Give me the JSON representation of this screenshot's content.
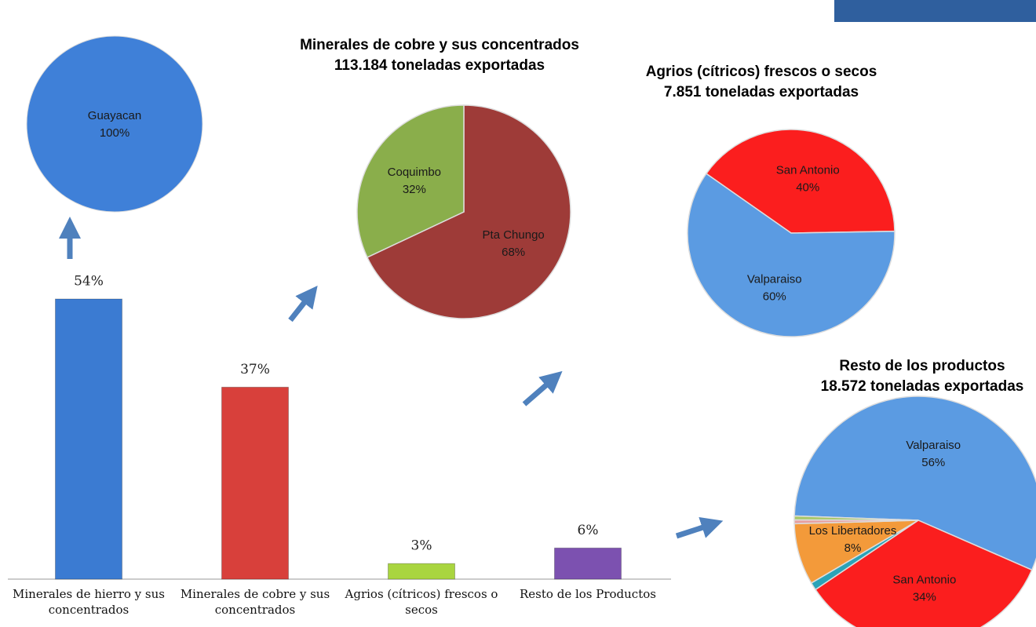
{
  "chart_data": [
    {
      "type": "bar",
      "categories": [
        "Minerales de hierro y sus concentrados",
        "Minerales de cobre y sus concentrados",
        "Agrios (cítricos) frescos o secos",
        "Resto de los Productos"
      ],
      "values": [
        54,
        37,
        3,
        6
      ],
      "value_labels": [
        "54%",
        "37%",
        "3%",
        "6%"
      ],
      "colors": [
        "#3b7bd2",
        "#d8403b",
        "#a9d53f",
        "#7c51b0"
      ]
    },
    {
      "type": "pie",
      "categories": [
        "Guayacan"
      ],
      "values": [
        100
      ],
      "value_labels": [
        "100%"
      ],
      "colors": [
        "#3f80d8"
      ]
    },
    {
      "type": "pie",
      "title": "Minerales de cobre y sus concentrados",
      "subtitle": "113.184 toneladas exportadas",
      "categories": [
        "Pta Chungo",
        "Coquimbo"
      ],
      "values": [
        68,
        32
      ],
      "value_labels": [
        "68%",
        "32%"
      ],
      "colors": [
        "#9e3b38",
        "#8aae4b"
      ]
    },
    {
      "type": "pie",
      "title": "Agrios (cítricos) frescos o secos",
      "subtitle": "7.851 toneladas exportadas",
      "categories": [
        "San Antonio",
        "Valparaiso"
      ],
      "values": [
        40,
        60
      ],
      "value_labels": [
        "40%",
        "60%"
      ],
      "colors": [
        "#fb1e1e",
        "#5b9be2"
      ]
    },
    {
      "type": "pie",
      "title": "Resto de los productos",
      "subtitle": "18.572 toneladas exportadas",
      "categories": [
        "Valparaiso",
        "San Antonio",
        null,
        "Los Libertadores",
        null,
        null
      ],
      "values": [
        56,
        34,
        1,
        8,
        0.5,
        0.5
      ],
      "value_labels": [
        "56%",
        "34%",
        null,
        "8%",
        null,
        null
      ],
      "colors": [
        "#5b9be2",
        "#fb1e1e",
        "#2aa3b8",
        "#f39a3a",
        "#e8a0a0",
        "#a8c868"
      ]
    }
  ]
}
